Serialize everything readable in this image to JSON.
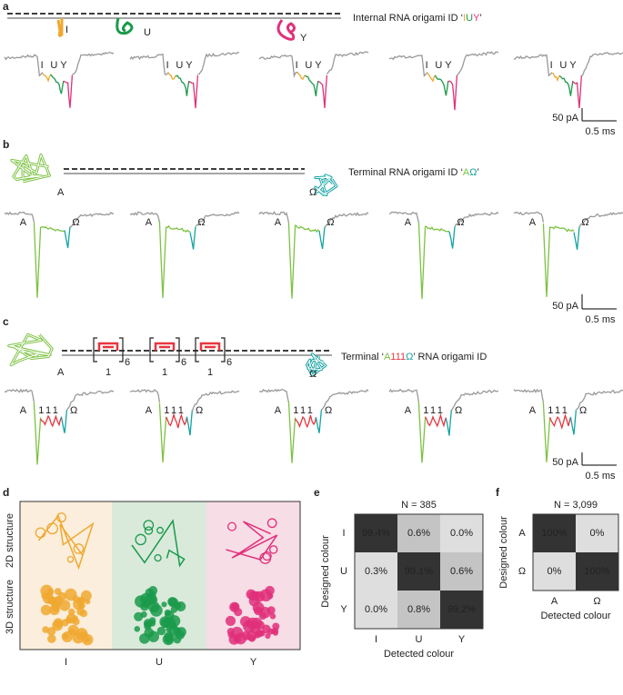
{
  "panel_a": {
    "label": "a",
    "title_prefix": "Internal RNA origami ID ‘",
    "title_letters": [
      "I",
      "U",
      "Y"
    ],
    "title_suffix": "’",
    "structure_labels": [
      "I",
      "U",
      "Y"
    ],
    "trace_labels": [
      [
        "I",
        "U",
        "Y"
      ],
      [
        "I",
        "U",
        "Y"
      ],
      [
        "I",
        "U",
        "Y"
      ],
      [
        "I",
        "U",
        "Y"
      ],
      [
        "I",
        "U",
        "Y"
      ]
    ],
    "scale_current": "50 pA",
    "scale_time": "0.5 ms"
  },
  "panel_b": {
    "label": "b",
    "title_prefix": "Terminal RNA origami ID ‘",
    "title_letters": [
      "A",
      "Ω"
    ],
    "title_suffix": "’",
    "structure_labels": [
      "A",
      "Ω"
    ],
    "trace_labels": [
      [
        "A",
        "Ω"
      ],
      [
        "A",
        "Ω"
      ],
      [
        "A",
        "Ω"
      ],
      [
        "A",
        "Ω"
      ],
      [
        "A",
        "Ω"
      ]
    ],
    "scale_current": "50 pA",
    "scale_time": "0.5 ms"
  },
  "panel_c": {
    "label": "c",
    "title_prefix": "Terminal ‘",
    "title_letters": [
      "A",
      "111",
      "Ω"
    ],
    "title_suffix": "’ RNA origami ID",
    "structure_labels": [
      "A",
      "1",
      "1",
      "1",
      "Ω"
    ],
    "repeat_counts": [
      "6",
      "6",
      "6"
    ],
    "trace_labels": [
      [
        "A",
        "1",
        "1",
        "1",
        "Ω"
      ],
      [
        "A",
        "1",
        "1",
        "1",
        "Ω"
      ],
      [
        "A",
        "1",
        "1",
        "1",
        "Ω"
      ],
      [
        "A",
        "1",
        "1",
        "1",
        "Ω"
      ],
      [
        "A",
        "1",
        "1",
        "1",
        "Ω"
      ]
    ],
    "scale_current": "50 pA",
    "scale_time": "0.5 ms"
  },
  "panel_d": {
    "label": "d",
    "row_labels": [
      "2D structure",
      "3D structure"
    ],
    "column_labels": [
      "I",
      "U",
      "Y"
    ]
  },
  "panel_e": {
    "label": "e",
    "n": "N = 385",
    "y_axis_label": "Designed colour",
    "x_axis_label": "Detected colour",
    "row_labels": [
      "I",
      "U",
      "Y"
    ],
    "column_labels": [
      "I",
      "U",
      "Y"
    ],
    "cells": [
      [
        "99.4%",
        "0.6%",
        "0.0%"
      ],
      [
        "0.3%",
        "99.1%",
        "0.6%"
      ],
      [
        "0.0%",
        "0.8%",
        "99.2%"
      ]
    ]
  },
  "panel_f": {
    "label": "f",
    "n": "N = 3,099",
    "y_axis_label": "Designed colour",
    "x_axis_label": "Detected colour",
    "row_labels": [
      "A",
      "Ω"
    ],
    "column_labels": [
      "A",
      "Ω"
    ],
    "cells": [
      [
        "100%",
        "0%"
      ],
      [
        "0%",
        "100%"
      ]
    ]
  }
}
